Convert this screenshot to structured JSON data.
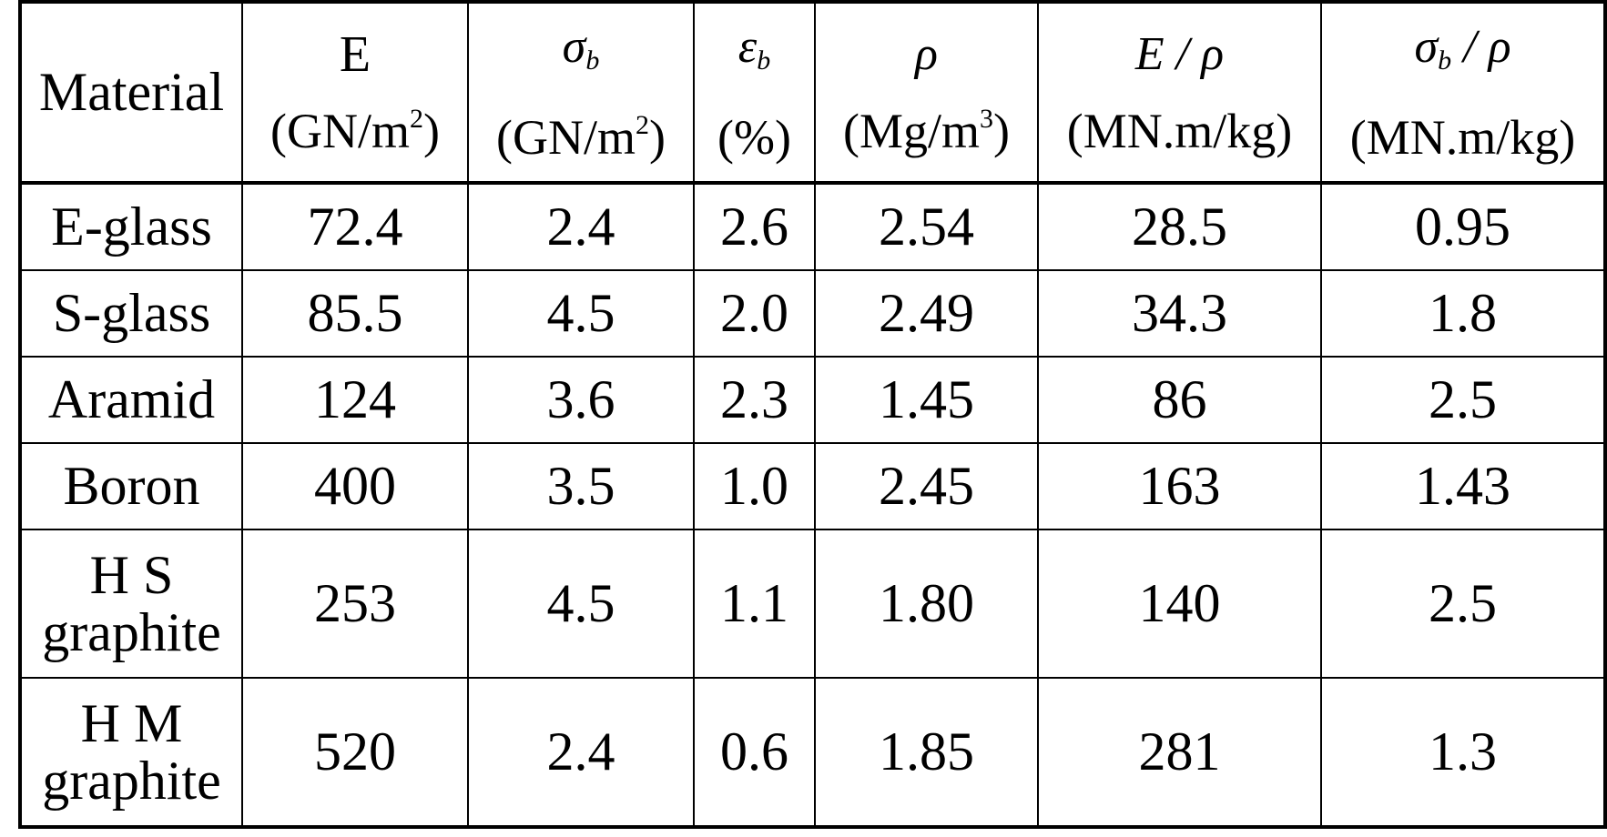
{
  "table": {
    "header": {
      "material": "Material",
      "columns": [
        {
          "symbol": "E",
          "subscript": "",
          "unit": "(GN/m",
          "unit_sup": "2",
          "unit_end": ")"
        },
        {
          "symbol": "σ",
          "subscript": "b",
          "unit": "(GN/m",
          "unit_sup": "2",
          "unit_end": ")"
        },
        {
          "symbol": "ε",
          "subscript": "b",
          "unit": "(%)",
          "unit_sup": "",
          "unit_end": ""
        },
        {
          "symbol": "ρ",
          "subscript": "",
          "unit": "(Mg/m",
          "unit_sup": "3",
          "unit_end": ")"
        },
        {
          "symbol": "E / ρ",
          "subscript": "",
          "unit": "(MN.m/kg)",
          "unit_sup": "",
          "unit_end": ""
        },
        {
          "symbol": "σ",
          "subscript": "b",
          "symbol_tail": " / ρ",
          "unit": "(MN.m/kg)",
          "unit_sup": "",
          "unit_end": ""
        }
      ]
    },
    "rows": [
      {
        "material_line1": "E-glass",
        "material_line2": "",
        "values": [
          "72.4",
          "2.4",
          "2.6",
          "2.54",
          "28.5",
          "0.95"
        ]
      },
      {
        "material_line1": "S-glass",
        "material_line2": "",
        "values": [
          "85.5",
          "4.5",
          "2.0",
          "2.49",
          "34.3",
          "1.8"
        ]
      },
      {
        "material_line1": "Aramid",
        "material_line2": "",
        "values": [
          "124",
          "3.6",
          "2.3",
          "1.45",
          "86",
          "2.5"
        ]
      },
      {
        "material_line1": "Boron",
        "material_line2": "",
        "values": [
          "400",
          "3.5",
          "1.0",
          "2.45",
          "163",
          "1.43"
        ]
      },
      {
        "material_line1": "H S",
        "material_line2": "graphite",
        "values": [
          "253",
          "4.5",
          "1.1",
          "1.80",
          "140",
          "2.5"
        ]
      },
      {
        "material_line1": "H M",
        "material_line2": "graphite",
        "values": [
          "520",
          "2.4",
          "0.6",
          "1.85",
          "281",
          "1.3"
        ]
      }
    ]
  }
}
